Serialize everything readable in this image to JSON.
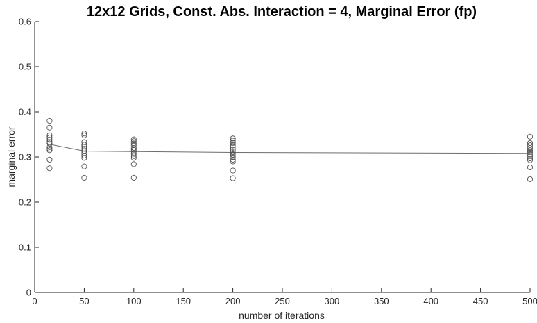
{
  "chart_data": {
    "type": "scatter",
    "title": "12x12 Grids, Const. Abs. Interaction = 4, Marginal Error (fp)",
    "xlabel": "number of iterations",
    "ylabel": "marginal error",
    "xlim": [
      0,
      500
    ],
    "ylim": [
      0,
      0.6
    ],
    "xticks": [
      0,
      50,
      100,
      150,
      200,
      250,
      300,
      350,
      400,
      450,
      500
    ],
    "yticks": [
      0,
      0.1,
      0.2,
      0.3,
      0.4,
      0.5,
      0.6
    ],
    "xtick_labels": [
      "0",
      "50",
      "100",
      "150",
      "200",
      "250",
      "300",
      "350",
      "400",
      "450",
      "500"
    ],
    "ytick_labels": [
      "0",
      "0.1",
      "0.2",
      "0.3",
      "0.4",
      "0.5",
      "0.6"
    ],
    "grid": false,
    "legend": "none",
    "scatter_groups": [
      {
        "x": 15,
        "values": [
          0.38,
          0.365,
          0.348,
          0.343,
          0.338,
          0.333,
          0.33,
          0.322,
          0.318,
          0.315,
          0.294,
          0.275
        ]
      },
      {
        "x": 50,
        "values": [
          0.352,
          0.348,
          0.333,
          0.327,
          0.323,
          0.318,
          0.313,
          0.308,
          0.303,
          0.298,
          0.279,
          0.254
        ]
      },
      {
        "x": 100,
        "values": [
          0.339,
          0.335,
          0.33,
          0.326,
          0.32,
          0.316,
          0.312,
          0.307,
          0.302,
          0.298,
          0.284,
          0.254
        ]
      },
      {
        "x": 200,
        "values": [
          0.341,
          0.336,
          0.331,
          0.326,
          0.322,
          0.317,
          0.313,
          0.309,
          0.305,
          0.3,
          0.294,
          0.29,
          0.27,
          0.253
        ]
      },
      {
        "x": 500,
        "values": [
          0.345,
          0.331,
          0.326,
          0.32,
          0.315,
          0.311,
          0.306,
          0.302,
          0.297,
          0.293,
          0.277,
          0.251
        ]
      }
    ],
    "mean_line": {
      "x": [
        15,
        50,
        100,
        200,
        500
      ],
      "y": [
        0.328,
        0.313,
        0.312,
        0.31,
        0.308
      ]
    },
    "colors": {
      "markers": "#505050",
      "line": "#6e6e6e",
      "axes": "#262626",
      "title": "#000000"
    }
  }
}
